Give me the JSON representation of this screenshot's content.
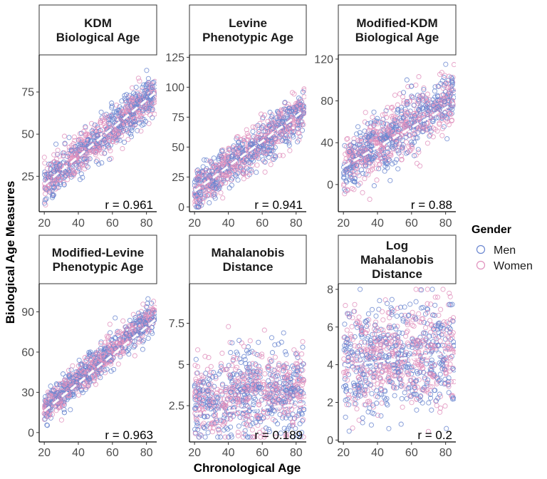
{
  "figure": {
    "x_axis_title": "Chronological Age",
    "y_axis_title": "Biological Age Measures"
  },
  "legend": {
    "title": "Gender",
    "items": [
      {
        "label": "Men",
        "color": "#6a86d0"
      },
      {
        "label": "Women",
        "color": "#e091bd"
      }
    ]
  },
  "chart_data": [
    {
      "type": "scatter",
      "title_lines": [
        "KDM",
        "Biological Age"
      ],
      "r_label": "r = 0.961",
      "x_ticks": [
        20,
        40,
        60,
        80
      ],
      "y_ticks": [
        25,
        50,
        75
      ],
      "xlim": [
        17,
        86
      ],
      "ylim": [
        4,
        97
      ],
      "x_range": [
        20,
        85
      ],
      "fit": {
        "slope": 0.843,
        "intercept": 3.0
      },
      "noise_sd": 6,
      "y_clip": [
        8,
        92
      ],
      "trend": [
        [
          20,
          20
        ],
        [
          85,
          74.5
        ]
      ]
    },
    {
      "type": "scatter",
      "title_lines": [
        "Levine",
        "Phenotypic Age"
      ],
      "r_label": "r = 0.941",
      "x_ticks": [
        20,
        40,
        60,
        80
      ],
      "y_ticks": [
        0,
        25,
        50,
        75,
        100,
        125
      ],
      "xlim": [
        17,
        86
      ],
      "ylim": [
        -4,
        127
      ],
      "x_range": [
        20,
        85
      ],
      "fit": {
        "slope": 1.03,
        "intercept": -8.0
      },
      "noise_sd": 9,
      "y_clip": [
        0,
        120
      ],
      "trend": [
        [
          20,
          13
        ],
        [
          85,
          81
        ]
      ]
    },
    {
      "type": "scatter",
      "title_lines": [
        "Modified-KDM",
        "Biological Age"
      ],
      "r_label": "r = 0.88",
      "x_ticks": [
        20,
        40,
        60,
        80
      ],
      "y_ticks": [
        0,
        40,
        80,
        120
      ],
      "xlim": [
        17,
        86
      ],
      "ylim": [
        -26,
        124
      ],
      "x_range": [
        20,
        85
      ],
      "fit": {
        "slope": 1.05,
        "intercept": -4.0
      },
      "noise_sd": 14,
      "y_clip": [
        -20,
        115
      ],
      "trend": [
        [
          20,
          17
        ],
        [
          85,
          78
        ]
      ]
    },
    {
      "type": "scatter",
      "title_lines": [
        "Modified-Levine",
        "Phenotypic Age"
      ],
      "r_label": "r = 0.963",
      "x_ticks": [
        20,
        40,
        60,
        80
      ],
      "y_ticks": [
        0,
        30,
        60,
        90
      ],
      "xlim": [
        17,
        86
      ],
      "ylim": [
        -7,
        111
      ],
      "x_range": [
        20,
        85
      ],
      "fit": {
        "slope": 1.1,
        "intercept": -5.0
      },
      "noise_sd": 6,
      "y_clip": [
        -5,
        105
      ],
      "trend": [
        [
          20,
          16
        ],
        [
          85,
          84
        ]
      ]
    },
    {
      "type": "scatter",
      "title_lines": [
        "Mahalanobis",
        "Distance"
      ],
      "r_label": "r = 0.189",
      "x_ticks": [
        20,
        40,
        60,
        80
      ],
      "y_ticks": [
        2.5,
        5.0,
        7.5
      ],
      "xlim": [
        17,
        86
      ],
      "ylim": [
        0.3,
        9.9
      ],
      "x_range": [
        20,
        85
      ],
      "fit": {
        "slope": 0.01,
        "intercept": 2.6
      },
      "noise_sd": 1.3,
      "y_clip": [
        0.6,
        9.4
      ],
      "trend": [
        [
          20,
          2.0
        ],
        [
          85,
          2.6
        ]
      ]
    },
    {
      "type": "scatter",
      "title_lines": [
        "Log",
        "Mahalanobis",
        "Distance"
      ],
      "r_label": "r = 0.2",
      "x_ticks": [
        20,
        40,
        60,
        80
      ],
      "y_ticks": [
        0,
        2,
        4,
        6,
        8
      ],
      "xlim": [
        17,
        86
      ],
      "ylim": [
        -0.1,
        8.3
      ],
      "x_range": [
        20,
        85
      ],
      "fit": {
        "slope": 0.011,
        "intercept": 3.8
      },
      "noise_sd": 1.4,
      "y_clip": [
        0.3,
        8.0
      ],
      "trend": [
        [
          20,
          3.95
        ],
        [
          85,
          4.65
        ]
      ]
    }
  ]
}
